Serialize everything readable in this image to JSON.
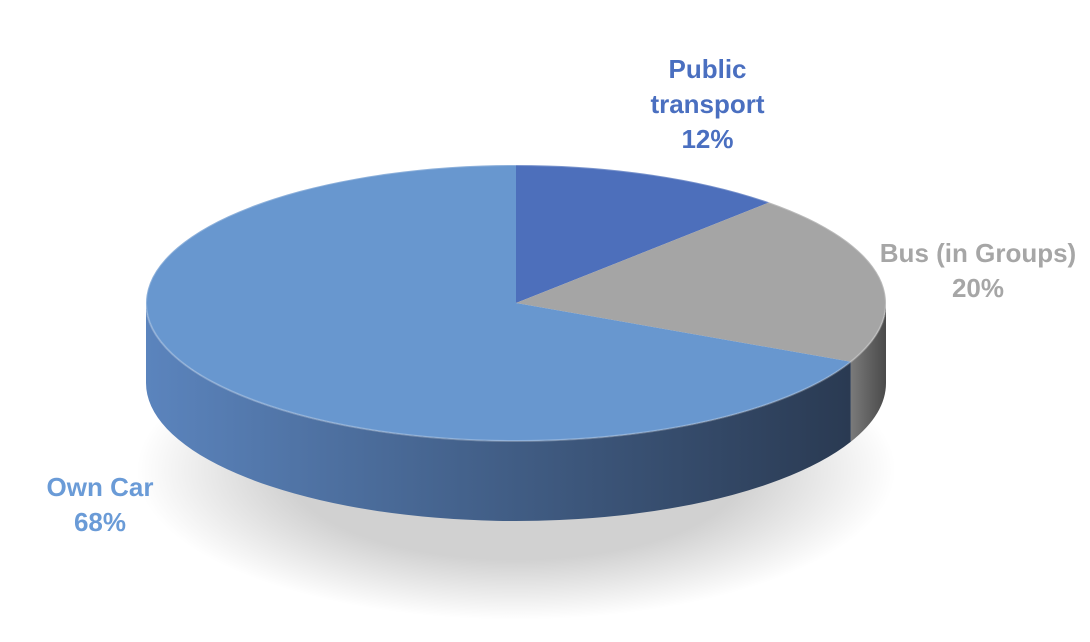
{
  "chart_data": {
    "type": "pie",
    "title": "",
    "style": "3d",
    "slices": [
      {
        "category": "Public transport",
        "value": 12,
        "label_lines": [
          "Public",
          "transport"
        ],
        "percent_label": "12%",
        "color": "#4d6fbb",
        "label_color": "#4a6fc0"
      },
      {
        "category": "Bus (in Groups)",
        "value": 20,
        "label_lines": [
          "Bus (in Groups)"
        ],
        "percent_label": "20%",
        "color": "#a5a5a5",
        "label_color": "#a6a6a6"
      },
      {
        "category": "Own Car",
        "value": 68,
        "label_lines": [
          "Own Car"
        ],
        "percent_label": "68%",
        "color": "#6897cf",
        "label_color": "#6a9bd7"
      }
    ]
  }
}
